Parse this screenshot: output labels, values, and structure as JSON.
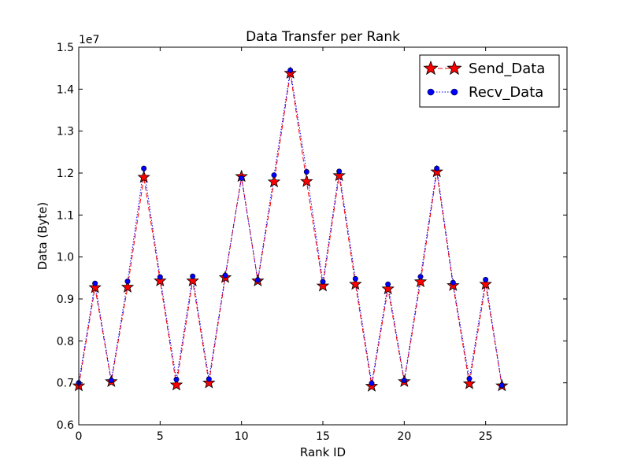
{
  "chart_data": {
    "type": "line",
    "title": "Data Transfer per Rank",
    "xlabel": "Rank ID",
    "ylabel": "Data (Byte)",
    "y_scale_label": "1e7",
    "y_multiplier": 10000000,
    "xlim": [
      0,
      30
    ],
    "ylim": [
      0.6,
      1.5
    ],
    "xticks": [
      0,
      5,
      10,
      15,
      20,
      25
    ],
    "yticks": [
      0.6,
      0.7,
      0.8,
      0.9,
      1.0,
      1.1,
      1.2,
      1.3,
      1.4,
      1.5
    ],
    "grid": false,
    "legend_position": "top-right",
    "x": [
      0,
      1,
      2,
      3,
      4,
      5,
      6,
      7,
      8,
      9,
      10,
      11,
      12,
      13,
      14,
      15,
      16,
      17,
      18,
      19,
      20,
      21,
      22,
      23,
      24,
      25,
      26
    ],
    "series": [
      {
        "name": "Send_Data",
        "marker": "star",
        "line_style": "dashed",
        "color": "#ff0000",
        "values": [
          0.693,
          0.927,
          0.703,
          0.928,
          1.19,
          0.943,
          0.695,
          0.943,
          0.7,
          0.951,
          1.192,
          0.943,
          1.179,
          1.438,
          1.18,
          0.931,
          1.194,
          0.935,
          0.692,
          0.924,
          0.703,
          0.941,
          1.203,
          0.932,
          0.698,
          0.935,
          0.693
        ]
      },
      {
        "name": "Recv_Data",
        "marker": "circle",
        "line_style": "dotted",
        "color": "#0000ff",
        "values": [
          0.7,
          0.937,
          0.706,
          0.942,
          1.211,
          0.952,
          0.708,
          0.954,
          0.709,
          0.956,
          1.188,
          0.945,
          1.195,
          1.445,
          1.203,
          0.941,
          1.204,
          0.948,
          0.699,
          0.935,
          0.706,
          0.953,
          1.211,
          0.939,
          0.71,
          0.946,
          0.694
        ]
      }
    ]
  }
}
